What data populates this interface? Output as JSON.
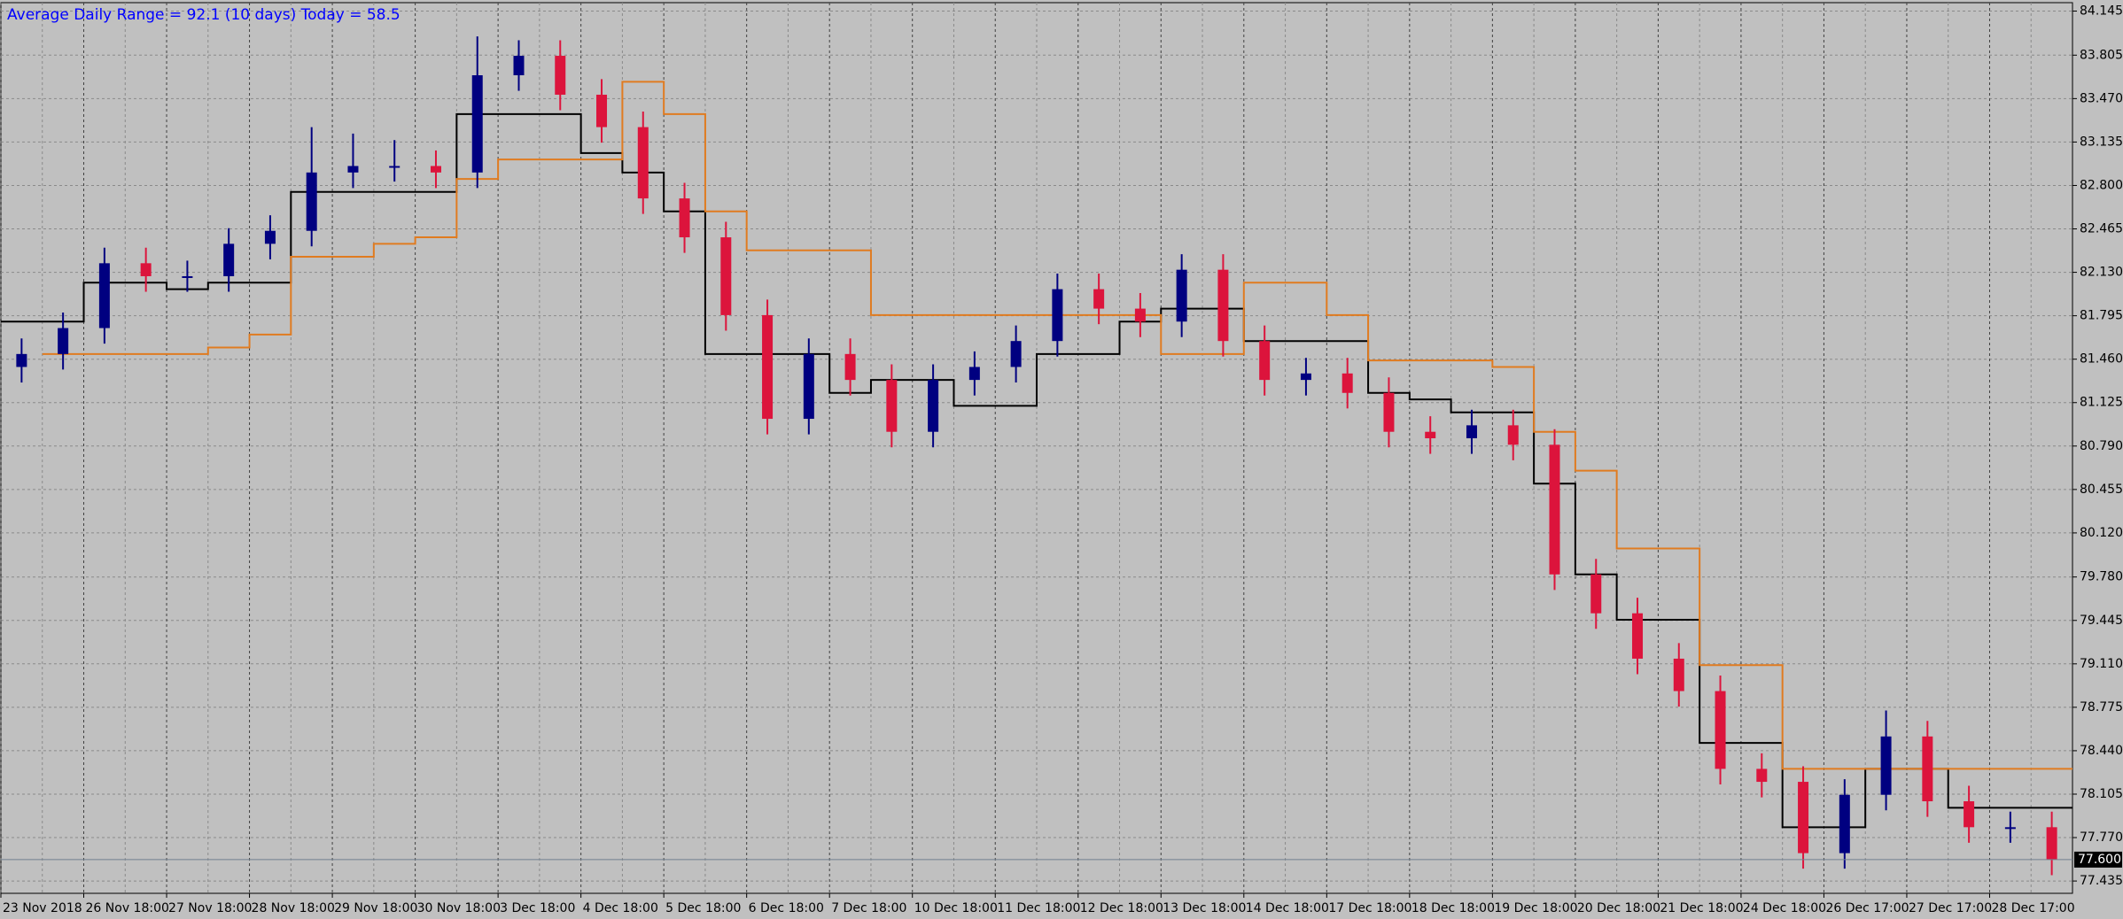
{
  "chart_data": {
    "type": "candlestick",
    "title": "Average Daily Range = 92.1 (10 days)   Today = 58.5",
    "categories": [
      "23 Nov 2018",
      null,
      "26 Nov 18:00",
      null,
      "27 Nov 18:00",
      null,
      "28 Nov 18:00",
      null,
      "29 Nov 18:00",
      null,
      "30 Nov 18:00",
      null,
      "3 Dec 18:00",
      null,
      "4 Dec 18:00",
      null,
      "5 Dec 18:00",
      null,
      "6 Dec 18:00",
      null,
      "7 Dec 18:00",
      null,
      "10 Dec 18:00",
      null,
      "11 Dec 18:00",
      null,
      "12 Dec 18:00",
      null,
      "13 Dec 18:00",
      null,
      "14 Dec 18:00",
      null,
      "17 Dec 18:00",
      null,
      "18 Dec 18:00",
      null,
      "19 Dec 18:00",
      null,
      "20 Dec 18:00",
      null,
      "21 Dec 18:00",
      null,
      "24 Dec 18:00",
      null,
      "26 Dec 17:00",
      null,
      "27 Dec 17:00",
      null,
      "28 Dec 17:00",
      null
    ],
    "open": [
      81.4,
      81.5,
      81.7,
      82.2,
      82.1,
      82.1,
      82.35,
      82.45,
      82.9,
      82.95,
      82.95,
      82.9,
      83.65,
      83.8,
      83.5,
      83.25,
      82.7,
      82.4,
      81.8,
      81.0,
      81.5,
      81.3,
      80.9,
      81.3,
      81.4,
      81.6,
      82.0,
      81.85,
      81.75,
      82.15,
      81.6,
      81.3,
      81.35,
      81.2,
      80.9,
      80.85,
      80.95,
      80.8,
      79.8,
      79.5,
      79.15,
      78.9,
      78.3,
      78.2,
      77.65,
      78.1,
      78.55,
      78.05,
      77.85,
      77.85
    ],
    "high": [
      81.62,
      81.82,
      82.32,
      82.32,
      82.22,
      82.47,
      82.57,
      83.25,
      83.2,
      83.15,
      83.07,
      83.95,
      83.92,
      83.92,
      83.62,
      83.37,
      82.82,
      82.52,
      81.92,
      81.62,
      81.62,
      81.42,
      81.42,
      81.52,
      81.72,
      82.12,
      82.12,
      81.97,
      82.27,
      82.27,
      81.72,
      81.47,
      81.47,
      81.32,
      81.02,
      81.07,
      81.07,
      80.92,
      79.92,
      79.62,
      79.27,
      79.02,
      78.42,
      78.32,
      78.22,
      78.75,
      78.67,
      78.17,
      77.97,
      77.97
    ],
    "low": [
      81.28,
      81.38,
      81.58,
      81.98,
      81.98,
      81.98,
      82.23,
      82.33,
      82.78,
      82.83,
      82.78,
      82.78,
      83.53,
      83.38,
      83.13,
      82.58,
      82.28,
      81.68,
      80.88,
      80.88,
      81.18,
      80.78,
      80.78,
      81.18,
      81.28,
      81.48,
      81.73,
      81.63,
      81.63,
      81.48,
      81.18,
      81.18,
      81.08,
      80.78,
      80.73,
      80.73,
      80.68,
      79.68,
      79.38,
      79.03,
      78.78,
      78.18,
      78.08,
      77.53,
      77.53,
      77.98,
      77.93,
      77.73,
      77.73,
      77.48
    ],
    "close": [
      81.5,
      81.7,
      82.2,
      82.1,
      82.1,
      82.35,
      82.45,
      82.9,
      82.95,
      82.95,
      82.9,
      83.65,
      83.8,
      83.5,
      83.25,
      82.7,
      82.4,
      81.8,
      81.0,
      81.5,
      81.3,
      80.9,
      81.3,
      81.4,
      81.6,
      82.0,
      81.85,
      81.75,
      82.15,
      81.6,
      81.3,
      81.35,
      81.2,
      80.9,
      80.85,
      80.95,
      80.8,
      79.8,
      79.5,
      79.15,
      78.9,
      78.3,
      78.2,
      77.65,
      78.1,
      78.55,
      78.05,
      77.85,
      77.85,
      77.6
    ],
    "up_color": "#000080",
    "down_color": "#dc143c",
    "overlays": [
      {
        "color": "#000000",
        "values": [
          81.75,
          81.75,
          82.05,
          82.05,
          82.0,
          82.05,
          82.05,
          82.75,
          82.75,
          82.75,
          82.75,
          83.35,
          83.35,
          83.35,
          83.05,
          82.9,
          82.6,
          81.5,
          81.5,
          81.5,
          81.2,
          81.3,
          81.3,
          81.1,
          81.1,
          81.5,
          81.5,
          81.75,
          81.85,
          81.85,
          81.6,
          81.6,
          81.6,
          81.2,
          81.15,
          81.05,
          81.05,
          80.5,
          79.8,
          79.45,
          79.45,
          78.5,
          78.5,
          77.85,
          77.85,
          78.3,
          78.3,
          78.0,
          78.0,
          78.0
        ]
      },
      {
        "color": "#e07b20",
        "values": [
          null,
          81.5,
          81.5,
          81.5,
          81.5,
          81.55,
          81.65,
          82.25,
          82.25,
          82.35,
          82.4,
          82.85,
          83.0,
          83.0,
          83.0,
          83.6,
          83.35,
          82.6,
          82.3,
          82.3,
          82.3,
          81.8,
          81.8,
          81.8,
          81.8,
          81.8,
          81.8,
          81.8,
          81.5,
          81.5,
          82.05,
          82.05,
          81.8,
          81.45,
          81.45,
          81.45,
          81.4,
          80.9,
          80.6,
          80.0,
          80.0,
          79.1,
          79.1,
          78.3,
          78.3,
          78.3,
          78.3,
          78.3,
          78.3,
          78.3
        ]
      }
    ],
    "last_price": {
      "value": 77.6,
      "label": "77.600"
    },
    "ylim": [
      77.34,
      84.21
    ],
    "yticks": [
      {
        "value": 77.435,
        "label": "77.435"
      },
      {
        "value": 77.77,
        "label": "77.770"
      },
      {
        "value": 78.105,
        "label": "78.105"
      },
      {
        "value": 78.44,
        "label": "78.440"
      },
      {
        "value": 78.775,
        "label": "78.775"
      },
      {
        "value": 79.11,
        "label": "79.110"
      },
      {
        "value": 79.445,
        "label": "79.445"
      },
      {
        "value": 79.78,
        "label": "79.780"
      },
      {
        "value": 80.12,
        "label": "80.120"
      },
      {
        "value": 80.455,
        "label": "80.455"
      },
      {
        "value": 80.79,
        "label": "80.790"
      },
      {
        "value": 81.125,
        "label": "81.125"
      },
      {
        "value": 81.46,
        "label": "81.460"
      },
      {
        "value": 81.795,
        "label": "81.795"
      },
      {
        "value": 82.13,
        "label": "82.130"
      },
      {
        "value": 82.465,
        "label": "82.465"
      },
      {
        "value": 82.8,
        "label": "82.800"
      },
      {
        "value": 83.135,
        "label": "83.135"
      },
      {
        "value": 83.47,
        "label": "83.470"
      },
      {
        "value": 83.805,
        "label": "83.805"
      },
      {
        "value": 84.145,
        "label": "84.145"
      }
    ],
    "grid": true
  }
}
